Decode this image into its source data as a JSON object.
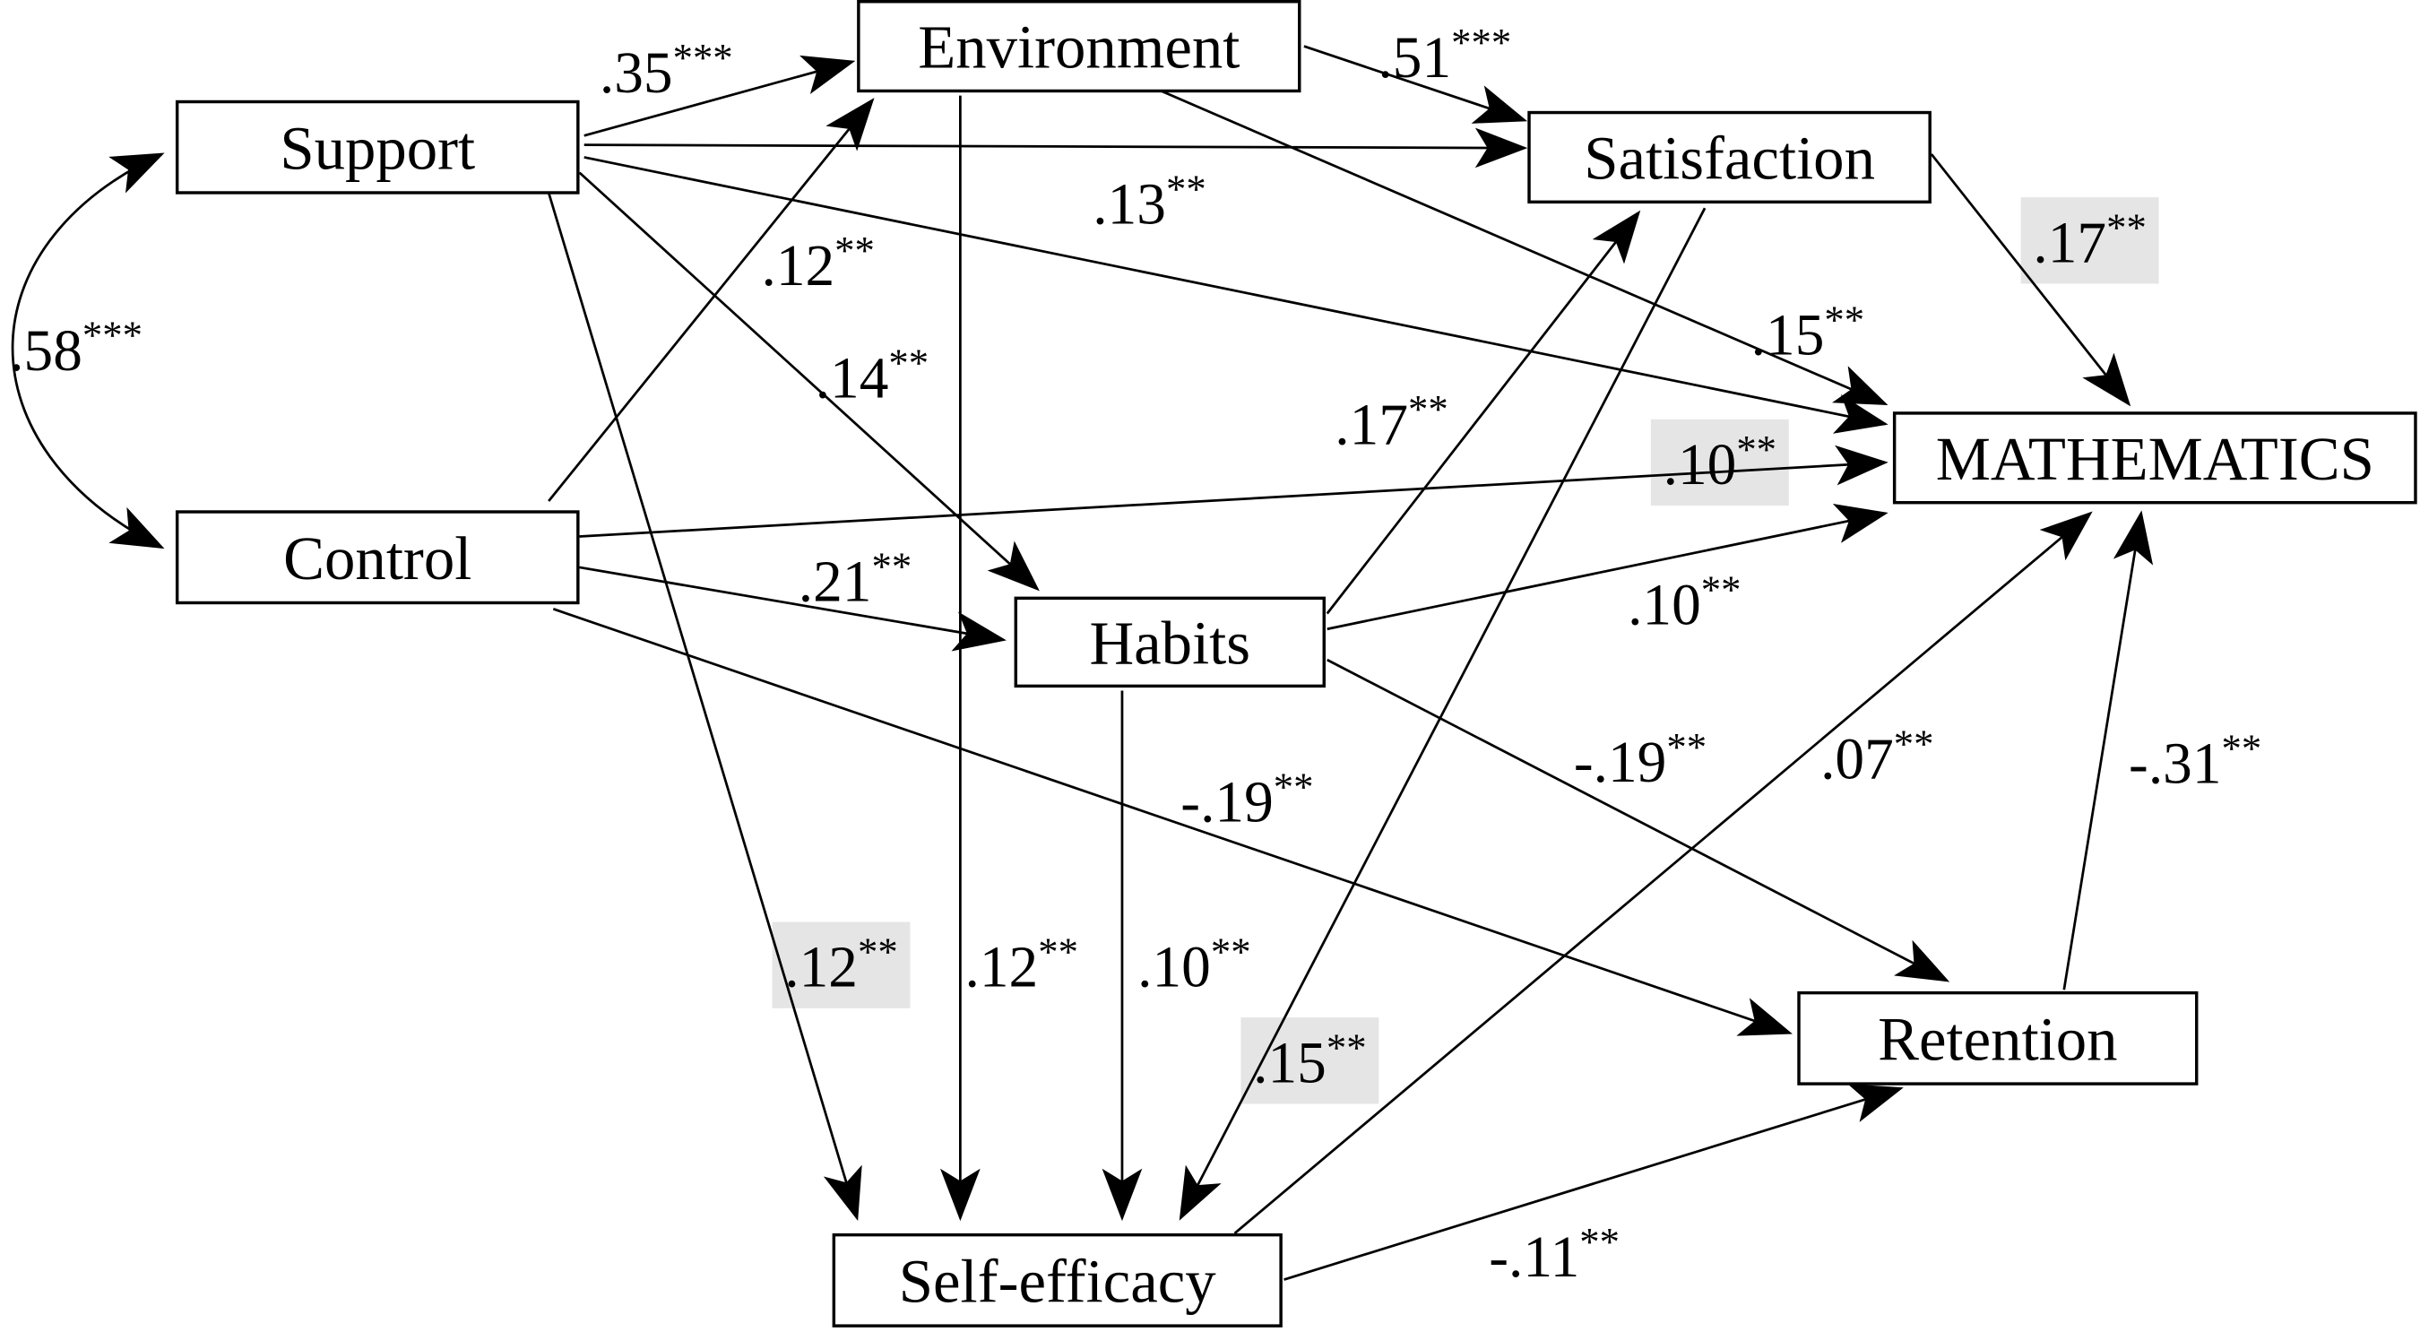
{
  "nodes": [
    {
      "label": "Support"
    },
    {
      "label": "Control"
    },
    {
      "label": "Environment"
    },
    {
      "label": "Satisfaction"
    },
    {
      "label": "MATHEMATICS"
    },
    {
      "label": "Habits"
    },
    {
      "label": "Retention"
    },
    {
      "label": "Self-efficacy"
    }
  ],
  "edges": [
    {
      "coef": ".35",
      "sig": "***",
      "highlight": false
    },
    {
      "coef": ".51",
      "sig": "***",
      "highlight": false
    },
    {
      "coef": ".13",
      "sig": "**",
      "highlight": false
    },
    {
      "coef": ".15",
      "sig": "**",
      "highlight": false
    },
    {
      "coef": ".12",
      "sig": "**",
      "highlight": false
    },
    {
      "coef": ".14",
      "sig": "**",
      "highlight": false
    },
    {
      "coef": ".12",
      "sig": "**",
      "highlight": true
    },
    {
      "coef": ".10",
      "sig": "**",
      "highlight": true
    },
    {
      "coef": ".21",
      "sig": "**",
      "highlight": false
    },
    {
      "coef": "-.19",
      "sig": "**",
      "highlight": false
    },
    {
      "coef": ".12",
      "sig": "**",
      "highlight": false
    },
    {
      "coef": ".17",
      "sig": "**",
      "highlight": false
    },
    {
      "coef": ".10",
      "sig": "**",
      "highlight": false
    },
    {
      "coef": "-.19",
      "sig": "**",
      "highlight": false
    },
    {
      "coef": ".10",
      "sig": "**",
      "highlight": false
    },
    {
      "coef": ".15",
      "sig": "**",
      "highlight": true
    },
    {
      "coef": ".17",
      "sig": "**",
      "highlight": true
    },
    {
      "coef": ".07",
      "sig": "**",
      "highlight": false
    },
    {
      "coef": "-.11",
      "sig": "**",
      "highlight": false
    },
    {
      "coef": "-.31",
      "sig": "**",
      "highlight": false
    },
    {
      "coef": ".58",
      "sig": "***",
      "highlight": false
    }
  ]
}
